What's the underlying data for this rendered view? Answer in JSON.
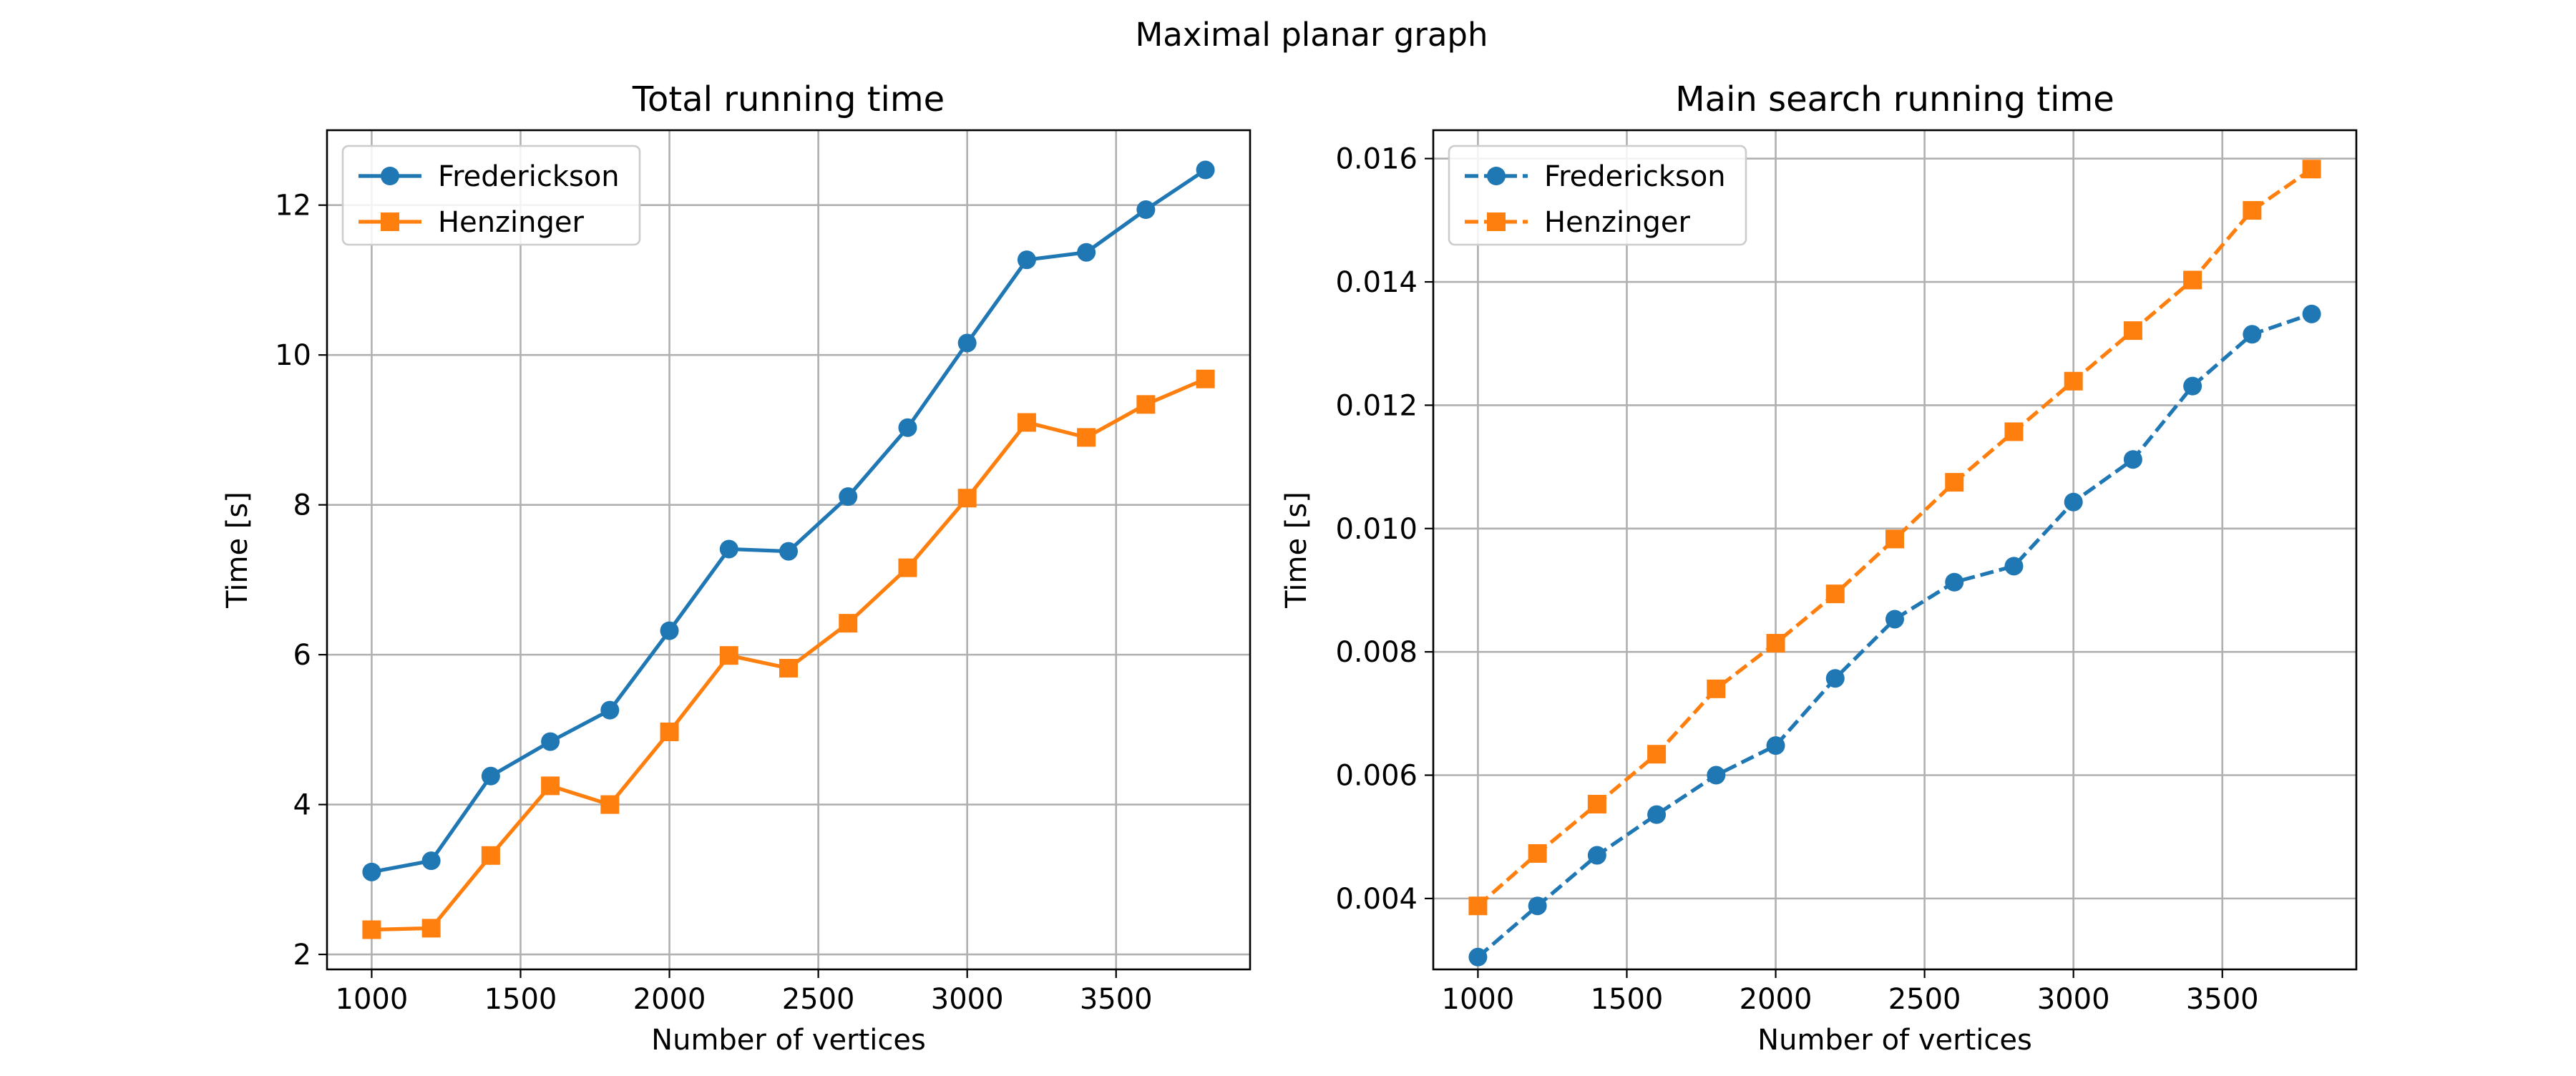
{
  "figure": {
    "suptitle": "Maximal planar graph"
  },
  "colors": {
    "fredrickson": "#1f77b4",
    "henzinger": "#ff7f0e",
    "grid": "#b0b0b0",
    "axis": "#000000"
  },
  "chart_data": [
    {
      "type": "line",
      "title": "Total running time",
      "xlabel": "Number of vertices",
      "ylabel": "Time [s]",
      "xlim": [
        850,
        3950
      ],
      "ylim": [
        1.8,
        13.0
      ],
      "xticks": [
        1000,
        1500,
        2000,
        2500,
        3000,
        3500
      ],
      "xtick_labels": [
        "1000",
        "1500",
        "2000",
        "2500",
        "3000",
        "3500"
      ],
      "yticks": [
        2,
        4,
        6,
        8,
        10,
        12
      ],
      "ytick_labels": [
        "2",
        "4",
        "6",
        "8",
        "10",
        "12"
      ],
      "grid": true,
      "legend_position": "top-left",
      "x": [
        1000,
        1200,
        1400,
        1600,
        1800,
        2000,
        2200,
        2400,
        2600,
        2800,
        3000,
        3200,
        3400,
        3600,
        3800
      ],
      "series": [
        {
          "name": "Frederickson",
          "color": "#1f77b4",
          "marker": "circle",
          "linestyle": "solid",
          "values": [
            3.1,
            3.25,
            4.38,
            4.84,
            5.26,
            6.32,
            7.41,
            7.38,
            8.11,
            9.03,
            10.16,
            11.27,
            11.37,
            11.94,
            12.47
          ]
        },
        {
          "name": "Henzinger",
          "color": "#ff7f0e",
          "marker": "square",
          "linestyle": "solid",
          "values": [
            2.33,
            2.35,
            3.32,
            4.25,
            4.0,
            4.97,
            5.99,
            5.82,
            6.42,
            7.16,
            8.09,
            9.1,
            8.9,
            9.34,
            9.68
          ]
        }
      ]
    },
    {
      "type": "line",
      "title": "Main search running time",
      "xlabel": "Number of vertices",
      "ylabel": "Time [s]",
      "xlim": [
        850,
        3950
      ],
      "ylim": [
        0.00285,
        0.01646
      ],
      "xticks": [
        1000,
        1500,
        2000,
        2500,
        3000,
        3500
      ],
      "xtick_labels": [
        "1000",
        "1500",
        "2000",
        "2500",
        "3000",
        "3500"
      ],
      "yticks": [
        0.004,
        0.006,
        0.008,
        0.01,
        0.012,
        0.014,
        0.016
      ],
      "ytick_labels": [
        "0.004",
        "0.006",
        "0.008",
        "0.010",
        "0.012",
        "0.014",
        "0.016"
      ],
      "grid": true,
      "legend_position": "top-left",
      "x": [
        1000,
        1200,
        1400,
        1600,
        1800,
        2000,
        2200,
        2400,
        2600,
        2800,
        3000,
        3200,
        3400,
        3600,
        3800
      ],
      "series": [
        {
          "name": "Frederickson",
          "color": "#1f77b4",
          "marker": "circle",
          "linestyle": "dashed",
          "values": [
            0.00305,
            0.00388,
            0.0047,
            0.00536,
            0.006,
            0.00648,
            0.00757,
            0.00853,
            0.00913,
            0.00939,
            0.01043,
            0.01112,
            0.01231,
            0.01315,
            0.01348
          ]
        },
        {
          "name": "Henzinger",
          "color": "#ff7f0e",
          "marker": "square",
          "linestyle": "dashed",
          "values": [
            0.00388,
            0.00473,
            0.00553,
            0.00634,
            0.0074,
            0.00814,
            0.00894,
            0.00983,
            0.01075,
            0.01157,
            0.01239,
            0.01321,
            0.01403,
            0.01516,
            0.01583
          ]
        }
      ]
    }
  ]
}
